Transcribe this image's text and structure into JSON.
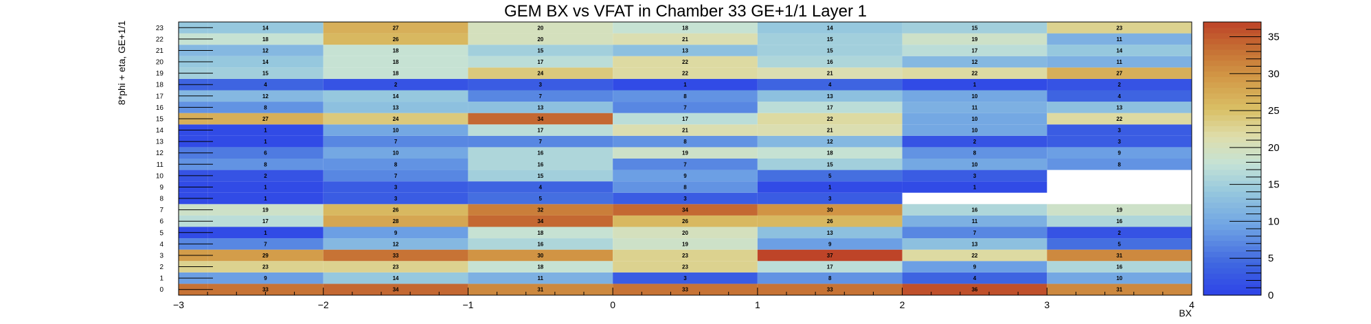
{
  "chart_data": {
    "type": "heatmap",
    "title": "GEM BX vs VFAT in Chamber 33 GE+1/1 Layer 1",
    "xlabel": "BX",
    "ylabel": "8*phi + eta, GE+1/1",
    "x_edges": [
      -3,
      -2.8,
      -2,
      -1,
      0,
      1,
      2,
      3,
      4
    ],
    "x_ticks": [
      -3,
      -2,
      -1,
      0,
      1,
      2,
      3,
      4
    ],
    "x_tick_labels": [
      "−3",
      "−2",
      "−1",
      "0",
      "1",
      "2",
      "3",
      "4"
    ],
    "xlim": [
      -3,
      4
    ],
    "y_categories": [
      "0",
      "1",
      "2",
      "3",
      "4",
      "5",
      "6",
      "7",
      "8",
      "9",
      "10",
      "11",
      "12",
      "13",
      "14",
      "15",
      "16",
      "17",
      "18",
      "19",
      "20",
      "21",
      "22",
      "23"
    ],
    "colorbar_range": [
      0,
      37
    ],
    "colorbar_ticks": [
      0,
      5,
      10,
      15,
      20,
      25,
      30,
      35
    ],
    "labeled_columns": [
      1,
      2,
      3,
      4,
      5,
      6,
      7
    ],
    "values": [
      [
        33,
        33,
        34,
        31,
        33,
        33,
        36,
        31
      ],
      [
        9,
        9,
        14,
        11,
        3,
        8,
        4,
        10
      ],
      [
        23,
        23,
        23,
        18,
        23,
        17,
        9,
        16
      ],
      [
        29,
        29,
        33,
        30,
        23,
        37,
        22,
        31
      ],
      [
        7,
        7,
        12,
        16,
        19,
        9,
        13,
        5
      ],
      [
        1,
        1,
        9,
        18,
        20,
        13,
        7,
        2
      ],
      [
        17,
        17,
        28,
        34,
        26,
        26,
        11,
        16
      ],
      [
        19,
        19,
        26,
        32,
        34,
        30,
        16,
        19
      ],
      [
        1,
        1,
        3,
        5,
        3,
        3,
        null,
        null
      ],
      [
        1,
        1,
        3,
        4,
        8,
        1,
        1,
        null
      ],
      [
        2,
        2,
        7,
        15,
        9,
        5,
        3,
        null
      ],
      [
        8,
        8,
        8,
        16,
        7,
        15,
        10,
        8
      ],
      [
        6,
        6,
        10,
        16,
        19,
        18,
        8,
        9
      ],
      [
        1,
        1,
        7,
        7,
        8,
        12,
        2,
        3
      ],
      [
        1,
        1,
        10,
        17,
        21,
        21,
        10,
        3
      ],
      [
        27,
        27,
        24,
        34,
        17,
        22,
        10,
        22
      ],
      [
        8,
        8,
        13,
        13,
        7,
        17,
        11,
        13
      ],
      [
        12,
        12,
        14,
        7,
        8,
        13,
        10,
        4
      ],
      [
        4,
        4,
        2,
        3,
        1,
        4,
        1,
        2
      ],
      [
        15,
        15,
        18,
        24,
        22,
        21,
        22,
        27
      ],
      [
        14,
        14,
        18,
        17,
        22,
        16,
        12,
        11
      ],
      [
        12,
        12,
        18,
        15,
        13,
        15,
        17,
        14
      ],
      [
        18,
        18,
        26,
        20,
        21,
        15,
        19,
        11
      ],
      [
        14,
        14,
        27,
        20,
        18,
        14,
        15,
        23
      ]
    ]
  }
}
